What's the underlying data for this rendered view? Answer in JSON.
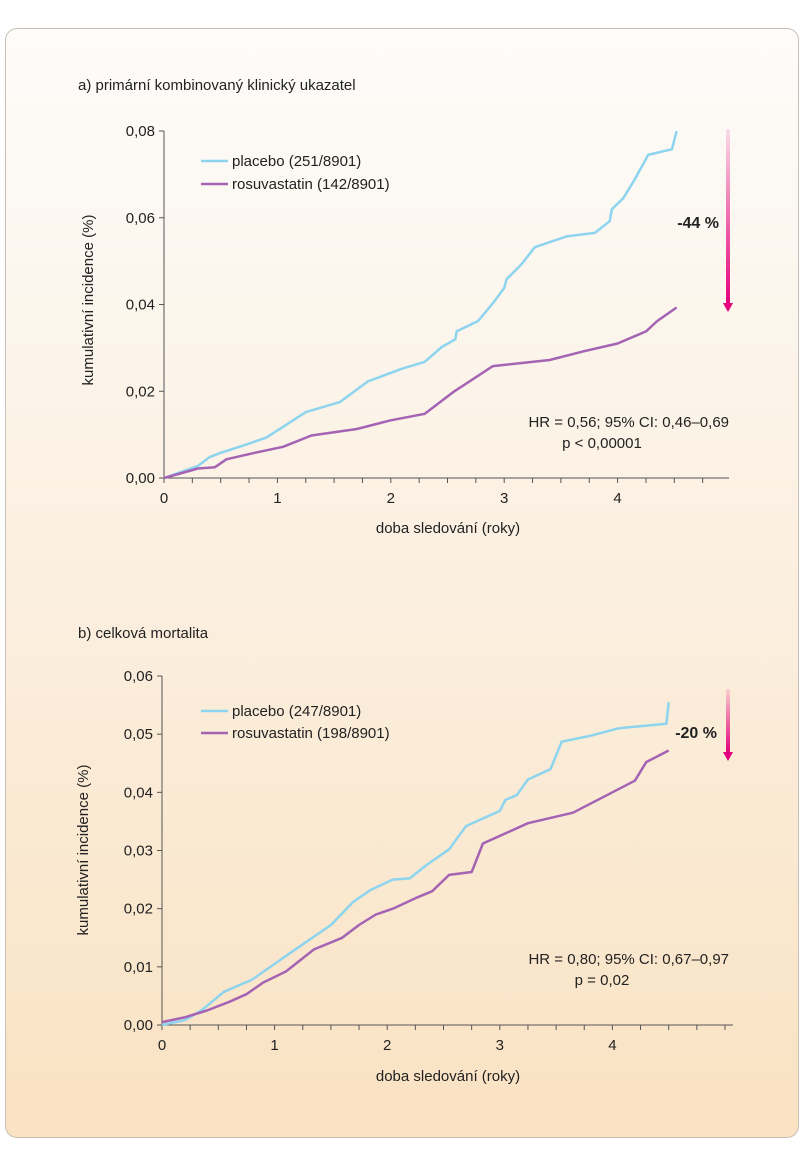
{
  "chart_data": [
    {
      "type": "line",
      "title": "a) primární kombinovaný klinický ukazatel",
      "xlabel": "doba sledování (roky)",
      "ylabel": "kumulativní incidence (%)",
      "xlim": [
        0,
        5
      ],
      "ylim": [
        0,
        0.08
      ],
      "x_ticks": [
        0,
        1,
        2,
        3,
        4
      ],
      "x_tick_labels": [
        "0",
        "1",
        "2",
        "3",
        "4"
      ],
      "y_ticks": [
        0,
        0.02,
        0.04,
        0.06,
        0.08
      ],
      "y_tick_labels": [
        "0,00",
        "0,02",
        "0,04",
        "0,06",
        "0,08"
      ],
      "legend_position": "top-left",
      "annotation_lines": [
        "HR = 0,56; 95% CI: 0,46–0,69",
        "p < 0,00001"
      ],
      "reduction_label": "-44 %",
      "arrow_range": [
        0.08,
        0.039
      ],
      "series": [
        {
          "name": "placebo (251/8901)",
          "color": "#8dd4ef",
          "points": [
            [
              0,
              0
            ],
            [
              0.3,
              0.0028
            ],
            [
              0.4,
              0.0048
            ],
            [
              0.5,
              0.0058
            ],
            [
              0.7,
              0.0075
            ],
            [
              0.9,
              0.0093
            ],
            [
              1.05,
              0.0118
            ],
            [
              1.25,
              0.0152
            ],
            [
              1.55,
              0.0175
            ],
            [
              1.8,
              0.0223
            ],
            [
              2.1,
              0.0252
            ],
            [
              2.3,
              0.0268
            ],
            [
              2.45,
              0.0302
            ],
            [
              2.57,
              0.032
            ],
            [
              2.58,
              0.0338
            ],
            [
              2.77,
              0.0362
            ],
            [
              2.9,
              0.0403
            ],
            [
              3.0,
              0.0438
            ],
            [
              3.02,
              0.0458
            ],
            [
              3.15,
              0.0492
            ],
            [
              3.27,
              0.0532
            ],
            [
              3.55,
              0.0557
            ],
            [
              3.8,
              0.0565
            ],
            [
              3.93,
              0.0592
            ],
            [
              3.95,
              0.062
            ],
            [
              4.05,
              0.0645
            ],
            [
              4.15,
              0.0688
            ],
            [
              4.27,
              0.0745
            ],
            [
              4.48,
              0.0758
            ],
            [
              4.52,
              0.08
            ]
          ]
        },
        {
          "name": "rosuvastatin (142/8901)",
          "color": "#a463b3",
          "points": [
            [
              0,
              0
            ],
            [
              0.3,
              0.0022
            ],
            [
              0.45,
              0.0025
            ],
            [
              0.55,
              0.0043
            ],
            [
              0.8,
              0.0058
            ],
            [
              1.05,
              0.0072
            ],
            [
              1.3,
              0.0098
            ],
            [
              1.7,
              0.0113
            ],
            [
              2.0,
              0.0133
            ],
            [
              2.3,
              0.0148
            ],
            [
              2.55,
              0.0198
            ],
            [
              2.9,
              0.0258
            ],
            [
              3.4,
              0.0272
            ],
            [
              3.7,
              0.0292
            ],
            [
              4.0,
              0.031
            ],
            [
              4.25,
              0.0338
            ],
            [
              4.35,
              0.0362
            ],
            [
              4.52,
              0.0393
            ]
          ]
        }
      ]
    },
    {
      "type": "line",
      "title": "b) celková mortalita",
      "xlabel": "doba sledování (roky)",
      "ylabel": "kumulativní incidence (%)",
      "xlim": [
        0,
        5
      ],
      "ylim": [
        0,
        0.06
      ],
      "x_ticks": [
        0,
        1,
        2,
        3,
        4
      ],
      "x_tick_labels": [
        "0",
        "1",
        "2",
        "3",
        "4"
      ],
      "y_ticks": [
        0,
        0.01,
        0.02,
        0.03,
        0.04,
        0.05,
        0.06
      ],
      "y_tick_labels": [
        "0,00",
        "0,01",
        "0,02",
        "0,03",
        "0,04",
        "0,05",
        "0,06"
      ],
      "legend_position": "top-left",
      "annotation_lines": [
        "HR = 0,80; 95% CI: 0,67–0,97",
        "p = 0,02"
      ],
      "reduction_label": "-20 %",
      "arrow_range": [
        0.058,
        0.046
      ],
      "series": [
        {
          "name": "placebo (247/8901)",
          "color": "#8dd4ef",
          "points": [
            [
              0,
              0
            ],
            [
              0.2,
              0.0008
            ],
            [
              0.35,
              0.0025
            ],
            [
              0.55,
              0.0057
            ],
            [
              0.8,
              0.0078
            ],
            [
              1.0,
              0.0105
            ],
            [
              1.2,
              0.0132
            ],
            [
              1.5,
              0.0172
            ],
            [
              1.7,
              0.0212
            ],
            [
              1.85,
              0.0232
            ],
            [
              2.05,
              0.025
            ],
            [
              2.2,
              0.0252
            ],
            [
              2.35,
              0.0275
            ],
            [
              2.55,
              0.0302
            ],
            [
              2.7,
              0.0342
            ],
            [
              3.0,
              0.0368
            ],
            [
              3.05,
              0.0387
            ],
            [
              3.15,
              0.0395
            ],
            [
              3.25,
              0.0422
            ],
            [
              3.45,
              0.044
            ],
            [
              3.55,
              0.0487
            ],
            [
              3.8,
              0.0497
            ],
            [
              4.05,
              0.051
            ],
            [
              4.48,
              0.0518
            ],
            [
              4.5,
              0.0555
            ]
          ]
        },
        {
          "name": "rosuvastatin (198/8901)",
          "color": "#a463b3",
          "points": [
            [
              0,
              0.0005
            ],
            [
              0.2,
              0.0013
            ],
            [
              0.4,
              0.0025
            ],
            [
              0.6,
              0.004
            ],
            [
              0.75,
              0.0053
            ],
            [
              0.9,
              0.0073
            ],
            [
              1.1,
              0.0092
            ],
            [
              1.35,
              0.013
            ],
            [
              1.6,
              0.015
            ],
            [
              1.75,
              0.0172
            ],
            [
              1.9,
              0.019
            ],
            [
              2.05,
              0.02
            ],
            [
              2.25,
              0.0218
            ],
            [
              2.4,
              0.023
            ],
            [
              2.55,
              0.0258
            ],
            [
              2.75,
              0.0263
            ],
            [
              2.85,
              0.0312
            ],
            [
              3.25,
              0.0347
            ],
            [
              3.65,
              0.0365
            ],
            [
              4.2,
              0.042
            ],
            [
              4.3,
              0.0452
            ],
            [
              4.5,
              0.0472
            ]
          ]
        }
      ]
    }
  ]
}
